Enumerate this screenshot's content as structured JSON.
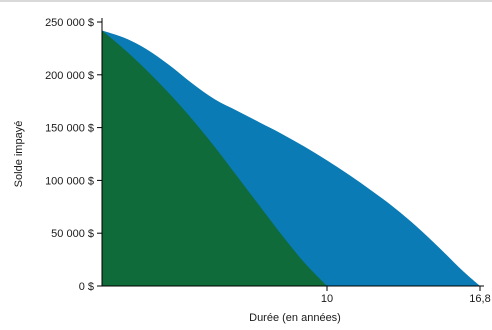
{
  "chart_data": {
    "type": "area",
    "xlabel": "Durée (en années)",
    "ylabel": "Solde impayé",
    "xlim": [
      0,
      16.8
    ],
    "ylim": [
      0,
      250000
    ],
    "x_ticks": [
      {
        "value": 10,
        "label": "10"
      },
      {
        "value": 16.8,
        "label": "16,8"
      }
    ],
    "y_ticks": [
      {
        "value": 0,
        "label": "0 $"
      },
      {
        "value": 50000,
        "label": "50 000 $"
      },
      {
        "value": 100000,
        "label": "100 000 $"
      },
      {
        "value": 150000,
        "label": "150 000 $"
      },
      {
        "value": 200000,
        "label": "200 000 $"
      },
      {
        "value": 250000,
        "label": "250 000 $"
      }
    ],
    "grid": false,
    "series": [
      {
        "color": "#0a7bb5",
        "points": [
          [
            0,
            242000
          ],
          [
            1,
            235000
          ],
          [
            2,
            224000
          ],
          [
            3,
            209000
          ],
          [
            4,
            192000
          ],
          [
            5,
            177000
          ],
          [
            6,
            166000
          ],
          [
            7,
            155000
          ],
          [
            8,
            144000
          ],
          [
            9,
            132000
          ],
          [
            10,
            119000
          ],
          [
            11,
            105000
          ],
          [
            12,
            90000
          ],
          [
            13,
            74000
          ],
          [
            14,
            56000
          ],
          [
            15,
            36000
          ],
          [
            16,
            15000
          ],
          [
            16.8,
            0
          ]
        ]
      },
      {
        "color": "#0f6b3a",
        "points": [
          [
            0,
            242000
          ],
          [
            1,
            224000
          ],
          [
            2,
            204000
          ],
          [
            3,
            182000
          ],
          [
            4,
            158000
          ],
          [
            5,
            132000
          ],
          [
            6,
            104000
          ],
          [
            7,
            76000
          ],
          [
            8,
            48000
          ],
          [
            9,
            22000
          ],
          [
            10,
            0
          ]
        ]
      }
    ]
  }
}
